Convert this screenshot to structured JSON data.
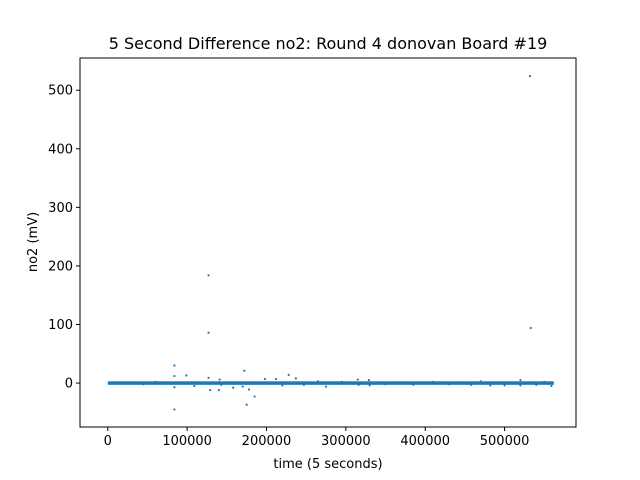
{
  "chart_data": {
    "type": "scatter",
    "title": "5 Second Difference no2: Round 4 donovan Board #19",
    "xlabel": "time (5 seconds)",
    "ylabel": "no2 (mV)",
    "xlim": [
      -35000,
      590000
    ],
    "ylim": [
      -75,
      555
    ],
    "xticks": [
      0,
      100000,
      200000,
      300000,
      400000,
      500000
    ],
    "xtick_labels": [
      "0",
      "100000",
      "200000",
      "300000",
      "400000",
      "500000"
    ],
    "yticks": [
      0,
      100,
      200,
      300,
      400,
      500
    ],
    "ytick_labels": [
      "0",
      "100",
      "200",
      "300",
      "400",
      "500"
    ],
    "grid": false,
    "marker_color": "#1f77b4",
    "baseline_band": {
      "x_range": [
        0,
        562000
      ],
      "y_range": [
        -3,
        3
      ]
    },
    "series": [
      {
        "points": [
          [
            532000,
            524
          ],
          [
            127000,
            184
          ],
          [
            127000,
            86
          ],
          [
            533000,
            94
          ],
          [
            84000,
            30
          ],
          [
            84000,
            12
          ],
          [
            99000,
            13
          ],
          [
            172000,
            21
          ],
          [
            127000,
            9
          ],
          [
            141000,
            6
          ],
          [
            228000,
            14
          ],
          [
            212000,
            7
          ],
          [
            198000,
            7
          ],
          [
            237000,
            8
          ],
          [
            140000,
            -12
          ],
          [
            129000,
            -12
          ],
          [
            178000,
            -11
          ],
          [
            84000,
            -45
          ],
          [
            175000,
            -37
          ],
          [
            185000,
            -23
          ],
          [
            158000,
            -8
          ],
          [
            170000,
            -6
          ],
          [
            84000,
            -7
          ],
          [
            109000,
            -5
          ],
          [
            143000,
            -3
          ],
          [
            220000,
            -4
          ],
          [
            247000,
            -3
          ],
          [
            275000,
            -6
          ],
          [
            315000,
            6
          ],
          [
            316000,
            -3
          ],
          [
            329000,
            5
          ],
          [
            330000,
            -4
          ],
          [
            385000,
            -3
          ],
          [
            458000,
            -3
          ],
          [
            482000,
            -4
          ],
          [
            500000,
            -4
          ],
          [
            520000,
            5
          ],
          [
            520000,
            -4
          ],
          [
            540000,
            -3
          ],
          [
            559000,
            -5
          ],
          [
            60000,
            2
          ],
          [
            25000,
            1
          ],
          [
            45000,
            -2
          ],
          [
            265000,
            3
          ],
          [
            295000,
            2
          ],
          [
            350000,
            -2
          ],
          [
            410000,
            2
          ],
          [
            430000,
            -2
          ],
          [
            470000,
            3
          ],
          [
            550000,
            2
          ]
        ]
      }
    ]
  }
}
